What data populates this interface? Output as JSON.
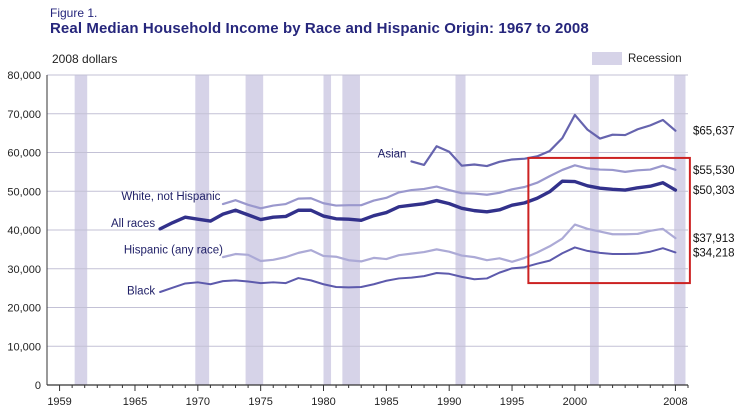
{
  "figure": {
    "label": "Figure 1.",
    "title": "Real Median Household Income by Race and Hispanic Origin: 1967 to 2008",
    "unit_label": "2008 dollars",
    "legend_label": "Recession"
  },
  "chart_data": {
    "type": "line",
    "title": "Real Median Household Income by Race and Hispanic Origin: 1967 to 2008",
    "xlabel": "",
    "ylabel": "2008 dollars",
    "ylim": [
      0,
      80000
    ],
    "ytick_step": 10000,
    "xlim": [
      1958,
      2009
    ],
    "xticks": [
      1959,
      1965,
      1970,
      1975,
      1980,
      1985,
      1990,
      1995,
      2000,
      2008
    ],
    "grid": true,
    "legend_position": "top-right",
    "colors": {
      "recession": "#d6d3e8",
      "grid": "#c3c1d6",
      "axis": "#333333",
      "highlight": "#cc2222"
    },
    "recessions": [
      [
        1960.2,
        1961.2
      ],
      [
        1969.8,
        1970.9
      ],
      [
        1973.8,
        1975.2
      ],
      [
        1980.0,
        1980.6
      ],
      [
        1981.5,
        1982.9
      ],
      [
        1990.5,
        1991.3
      ],
      [
        2001.2,
        2001.9
      ],
      [
        2007.9,
        2008.8
      ]
    ],
    "series": [
      {
        "id": "white-not-hispanic",
        "name": "White, not Hispanic",
        "color": "#9a98cd",
        "width": 2.2,
        "start_year": 1972,
        "end_label": "$55,530",
        "label": {
          "x": 1971.8,
          "y": 48800,
          "anchor": "end"
        },
        "values": [
          46700,
          47700,
          46500,
          45600,
          46300,
          46700,
          48100,
          48200,
          46900,
          46300,
          46400,
          46400,
          47600,
          48300,
          49700,
          50300,
          50600,
          51200,
          50300,
          49500,
          49400,
          49100,
          49600,
          50500,
          51100,
          52200,
          53900,
          55500,
          56700,
          55900,
          55600,
          55500,
          55000,
          55400,
          55600,
          56600,
          55530
        ]
      },
      {
        "id": "hispanic",
        "name": "Hispanic (any race)",
        "color": "#acaad6",
        "width": 2.2,
        "start_year": 1972,
        "end_label": "$37,913",
        "label": {
          "x": 1972.0,
          "y": 35000,
          "anchor": "end"
        },
        "values": [
          33000,
          33800,
          33600,
          32000,
          32300,
          33000,
          34100,
          34800,
          33300,
          33100,
          32200,
          31900,
          32800,
          32500,
          33500,
          33900,
          34300,
          35000,
          34400,
          33400,
          33000,
          32200,
          32700,
          31800,
          32800,
          34200,
          35800,
          37800,
          41400,
          40300,
          39600,
          38900,
          38900,
          39000,
          39800,
          40300,
          37913
        ]
      },
      {
        "id": "black",
        "name": "Black",
        "color": "#5d5aac",
        "width": 2,
        "start_year": 1967,
        "end_label": "$34,218",
        "label": {
          "x": 1966.6,
          "y": 24400,
          "anchor": "end"
        },
        "values": [
          24000,
          25100,
          26200,
          26500,
          26000,
          26800,
          27000,
          26700,
          26300,
          26500,
          26300,
          27600,
          27000,
          26000,
          25300,
          25200,
          25300,
          26000,
          26900,
          27500,
          27700,
          28100,
          28900,
          28700,
          27900,
          27300,
          27500,
          29000,
          30100,
          30400,
          31300,
          32100,
          34000,
          35500,
          34600,
          34100,
          33800,
          33800,
          33900,
          34400,
          35300,
          34218
        ]
      },
      {
        "id": "asian",
        "name": "Asian",
        "color": "#6664ae",
        "width": 2.2,
        "start_year": 1987,
        "end_label": "$65,637",
        "label": {
          "x": 1986.6,
          "y": 59800,
          "anchor": "end"
        },
        "values": [
          57700,
          56800,
          61600,
          60200,
          56600,
          56900,
          56500,
          57600,
          58200,
          58400,
          59000,
          60400,
          63700,
          69700,
          65900,
          63600,
          64600,
          64500,
          66000,
          67000,
          68400,
          65637
        ]
      },
      {
        "id": "all-races",
        "name": "All races",
        "color": "#32318b",
        "width": 3.4,
        "start_year": 1967,
        "end_label": "$50,303",
        "label": {
          "x": 1966.6,
          "y": 41800,
          "anchor": "end"
        },
        "values": [
          40300,
          41900,
          43300,
          42800,
          42300,
          44100,
          45100,
          43900,
          42700,
          43300,
          43500,
          45100,
          45100,
          43600,
          42900,
          42800,
          42500,
          43700,
          44500,
          46000,
          46400,
          46800,
          47600,
          46800,
          45600,
          45000,
          44700,
          45200,
          46400,
          47000,
          48200,
          49900,
          52600,
          52500,
          51400,
          50800,
          50500,
          50300,
          50900,
          51300,
          52200,
          50303
        ]
      }
    ],
    "highlight_box": {
      "x0": 1996.3,
      "x1": 2009.15,
      "y0": 26300,
      "y1": 58600
    }
  }
}
